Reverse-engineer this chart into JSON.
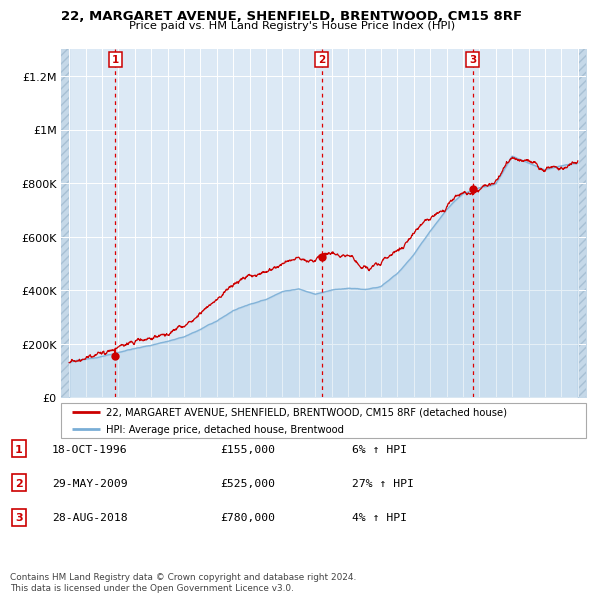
{
  "title": "22, MARGARET AVENUE, SHENFIELD, BRENTWOOD, CM15 8RF",
  "subtitle": "Price paid vs. HM Land Registry's House Price Index (HPI)",
  "background_color": "#dce9f5",
  "grid_color": "#ffffff",
  "sale_line_color": "#cc0000",
  "hpi_line_color": "#7aaed6",
  "sale_marker_color": "#cc0000",
  "ylim": [
    0,
    1300000
  ],
  "yticks": [
    0,
    200000,
    400000,
    600000,
    800000,
    1000000,
    1200000
  ],
  "ytick_labels": [
    "£0",
    "£200K",
    "£400K",
    "£600K",
    "£800K",
    "£1M",
    "£1.2M"
  ],
  "xlim_start": 1993.5,
  "xlim_end": 2025.5,
  "xticks": [
    1994,
    1995,
    1996,
    1997,
    1998,
    1999,
    2000,
    2001,
    2002,
    2003,
    2004,
    2005,
    2006,
    2007,
    2008,
    2009,
    2010,
    2011,
    2012,
    2013,
    2014,
    2015,
    2016,
    2017,
    2018,
    2019,
    2020,
    2021,
    2022,
    2023,
    2024,
    2025
  ],
  "sale_events": [
    {
      "year": 1996.8,
      "price": 155000,
      "label": "1"
    },
    {
      "year": 2009.4,
      "price": 525000,
      "label": "2"
    },
    {
      "year": 2018.6,
      "price": 780000,
      "label": "3"
    }
  ],
  "legend_sale_label": "22, MARGARET AVENUE, SHENFIELD, BRENTWOOD, CM15 8RF (detached house)",
  "legend_hpi_label": "HPI: Average price, detached house, Brentwood",
  "table_rows": [
    {
      "num": "1",
      "date": "18-OCT-1996",
      "price": "£155,000",
      "hpi": "6% ↑ HPI"
    },
    {
      "num": "2",
      "date": "29-MAY-2009",
      "price": "£525,000",
      "hpi": "27% ↑ HPI"
    },
    {
      "num": "3",
      "date": "28-AUG-2018",
      "price": "£780,000",
      "hpi": "4% ↑ HPI"
    }
  ],
  "footnote": "Contains HM Land Registry data © Crown copyright and database right 2024.\nThis data is licensed under the Open Government Licence v3.0."
}
